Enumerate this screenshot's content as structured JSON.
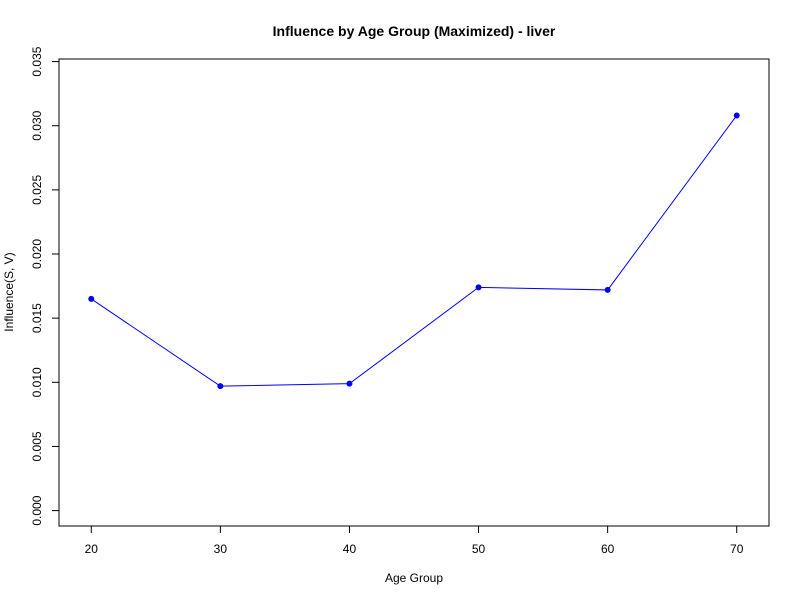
{
  "chart_data": {
    "type": "line",
    "title": "Influence by Age Group (Maximized) - liver",
    "xlabel": "Age Group",
    "ylabel": "Influence(S, V)",
    "x": [
      20,
      30,
      40,
      50,
      60,
      70
    ],
    "x_ticks": [
      "20",
      "30",
      "40",
      "50",
      "60",
      "70"
    ],
    "y_ticks": [
      "0.000",
      "0.005",
      "0.010",
      "0.015",
      "0.020",
      "0.025",
      "0.030",
      "0.035"
    ],
    "xlim": [
      17.5,
      72.5
    ],
    "ylim": [
      -0.0012,
      0.0352
    ],
    "series": [
      {
        "color": "#0000ff",
        "values": [
          0.0165,
          0.0097,
          0.0099,
          0.0174,
          0.0172,
          0.0308
        ]
      }
    ],
    "grid": false,
    "legend": "none"
  }
}
